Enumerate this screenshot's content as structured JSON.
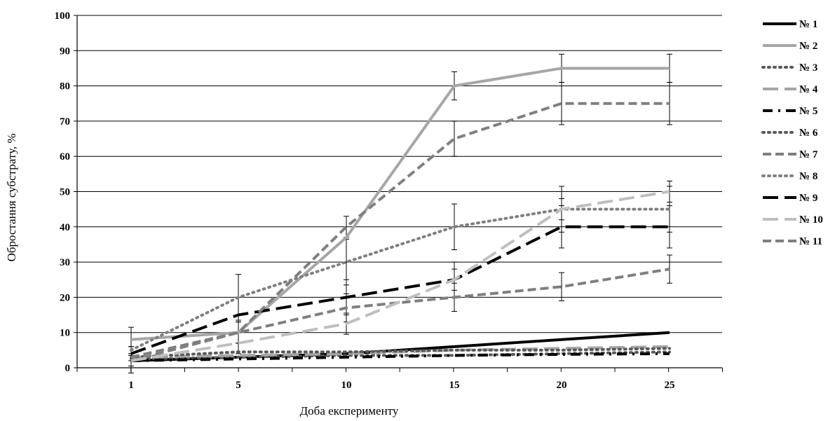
{
  "chart_data": {
    "type": "line",
    "title": "",
    "xlabel": "Доба експерименту",
    "ylabel": "Обростання субстрату, %",
    "categories": [
      "1",
      "5",
      "10",
      "15",
      "20",
      "25"
    ],
    "ylim": [
      0,
      100
    ],
    "yticks": [
      "0",
      "10",
      "20",
      "30",
      "40",
      "50",
      "60",
      "70",
      "80",
      "90",
      "100"
    ],
    "grid": "horizontal",
    "legend_position": "right",
    "series": [
      {
        "name": "№ 1",
        "color": "#000000",
        "style": "solid",
        "values": [
          2,
          3,
          4,
          6,
          8,
          10
        ],
        "errors": [
          1.5,
          0,
          0,
          0,
          0,
          0
        ]
      },
      {
        "name": "№ 2",
        "color": "#a6a6a6",
        "style": "solid",
        "values": [
          8,
          10,
          37,
          80,
          85,
          85
        ],
        "errors": [
          0,
          0,
          0,
          4,
          4,
          4
        ]
      },
      {
        "name": "№ 3",
        "color": "#595959",
        "style": "dot",
        "values": [
          2.5,
          3,
          3.5,
          3.5,
          4,
          4.5
        ],
        "errors": [
          0,
          0,
          0,
          0,
          0,
          0
        ]
      },
      {
        "name": "№ 4",
        "color": "#a6a6a6",
        "style": "long-dash",
        "values": [
          3,
          3.5,
          4,
          5,
          5.5,
          6
        ],
        "errors": [
          0,
          0,
          0,
          0,
          0,
          0
        ]
      },
      {
        "name": "№ 5",
        "color": "#000000",
        "style": "dash-dot",
        "values": [
          2,
          2.5,
          3,
          3.5,
          3.8,
          4
        ],
        "errors": [
          0,
          0,
          0,
          0,
          0,
          0
        ]
      },
      {
        "name": "№ 6",
        "color": "#595959",
        "style": "dot",
        "values": [
          3,
          4.5,
          4.5,
          5,
          5,
          5.5
        ],
        "errors": [
          0,
          0,
          0,
          0,
          0,
          0
        ]
      },
      {
        "name": "№ 7",
        "color": "#7f7f7f",
        "style": "dash",
        "values": [
          2,
          10,
          17,
          20,
          23,
          28
        ],
        "errors": [
          2,
          3,
          4,
          4,
          4,
          4
        ]
      },
      {
        "name": "№ 8",
        "color": "#7f7f7f",
        "style": "dot",
        "values": [
          5,
          20,
          30,
          40,
          45,
          45
        ],
        "errors": [
          6.5,
          6.5,
          6.5,
          6.5,
          6.5,
          6.5
        ]
      },
      {
        "name": "№ 9",
        "color": "#000000",
        "style": "long-dash",
        "values": [
          4,
          15,
          20,
          25,
          40,
          40
        ],
        "errors": [
          2,
          5,
          5,
          5,
          6,
          6
        ]
      },
      {
        "name": "№ 10",
        "color": "#bfbfbf",
        "style": "long-dash",
        "values": [
          2,
          7,
          12.5,
          25,
          45,
          50
        ],
        "errors": [
          2,
          3,
          3,
          3,
          3,
          3
        ]
      },
      {
        "name": "№ 11",
        "color": "#7f7f7f",
        "style": "dash",
        "values": [
          3,
          10,
          40,
          65,
          75,
          75
        ],
        "errors": [
          3,
          3,
          3,
          5,
          6,
          6
        ]
      }
    ]
  }
}
